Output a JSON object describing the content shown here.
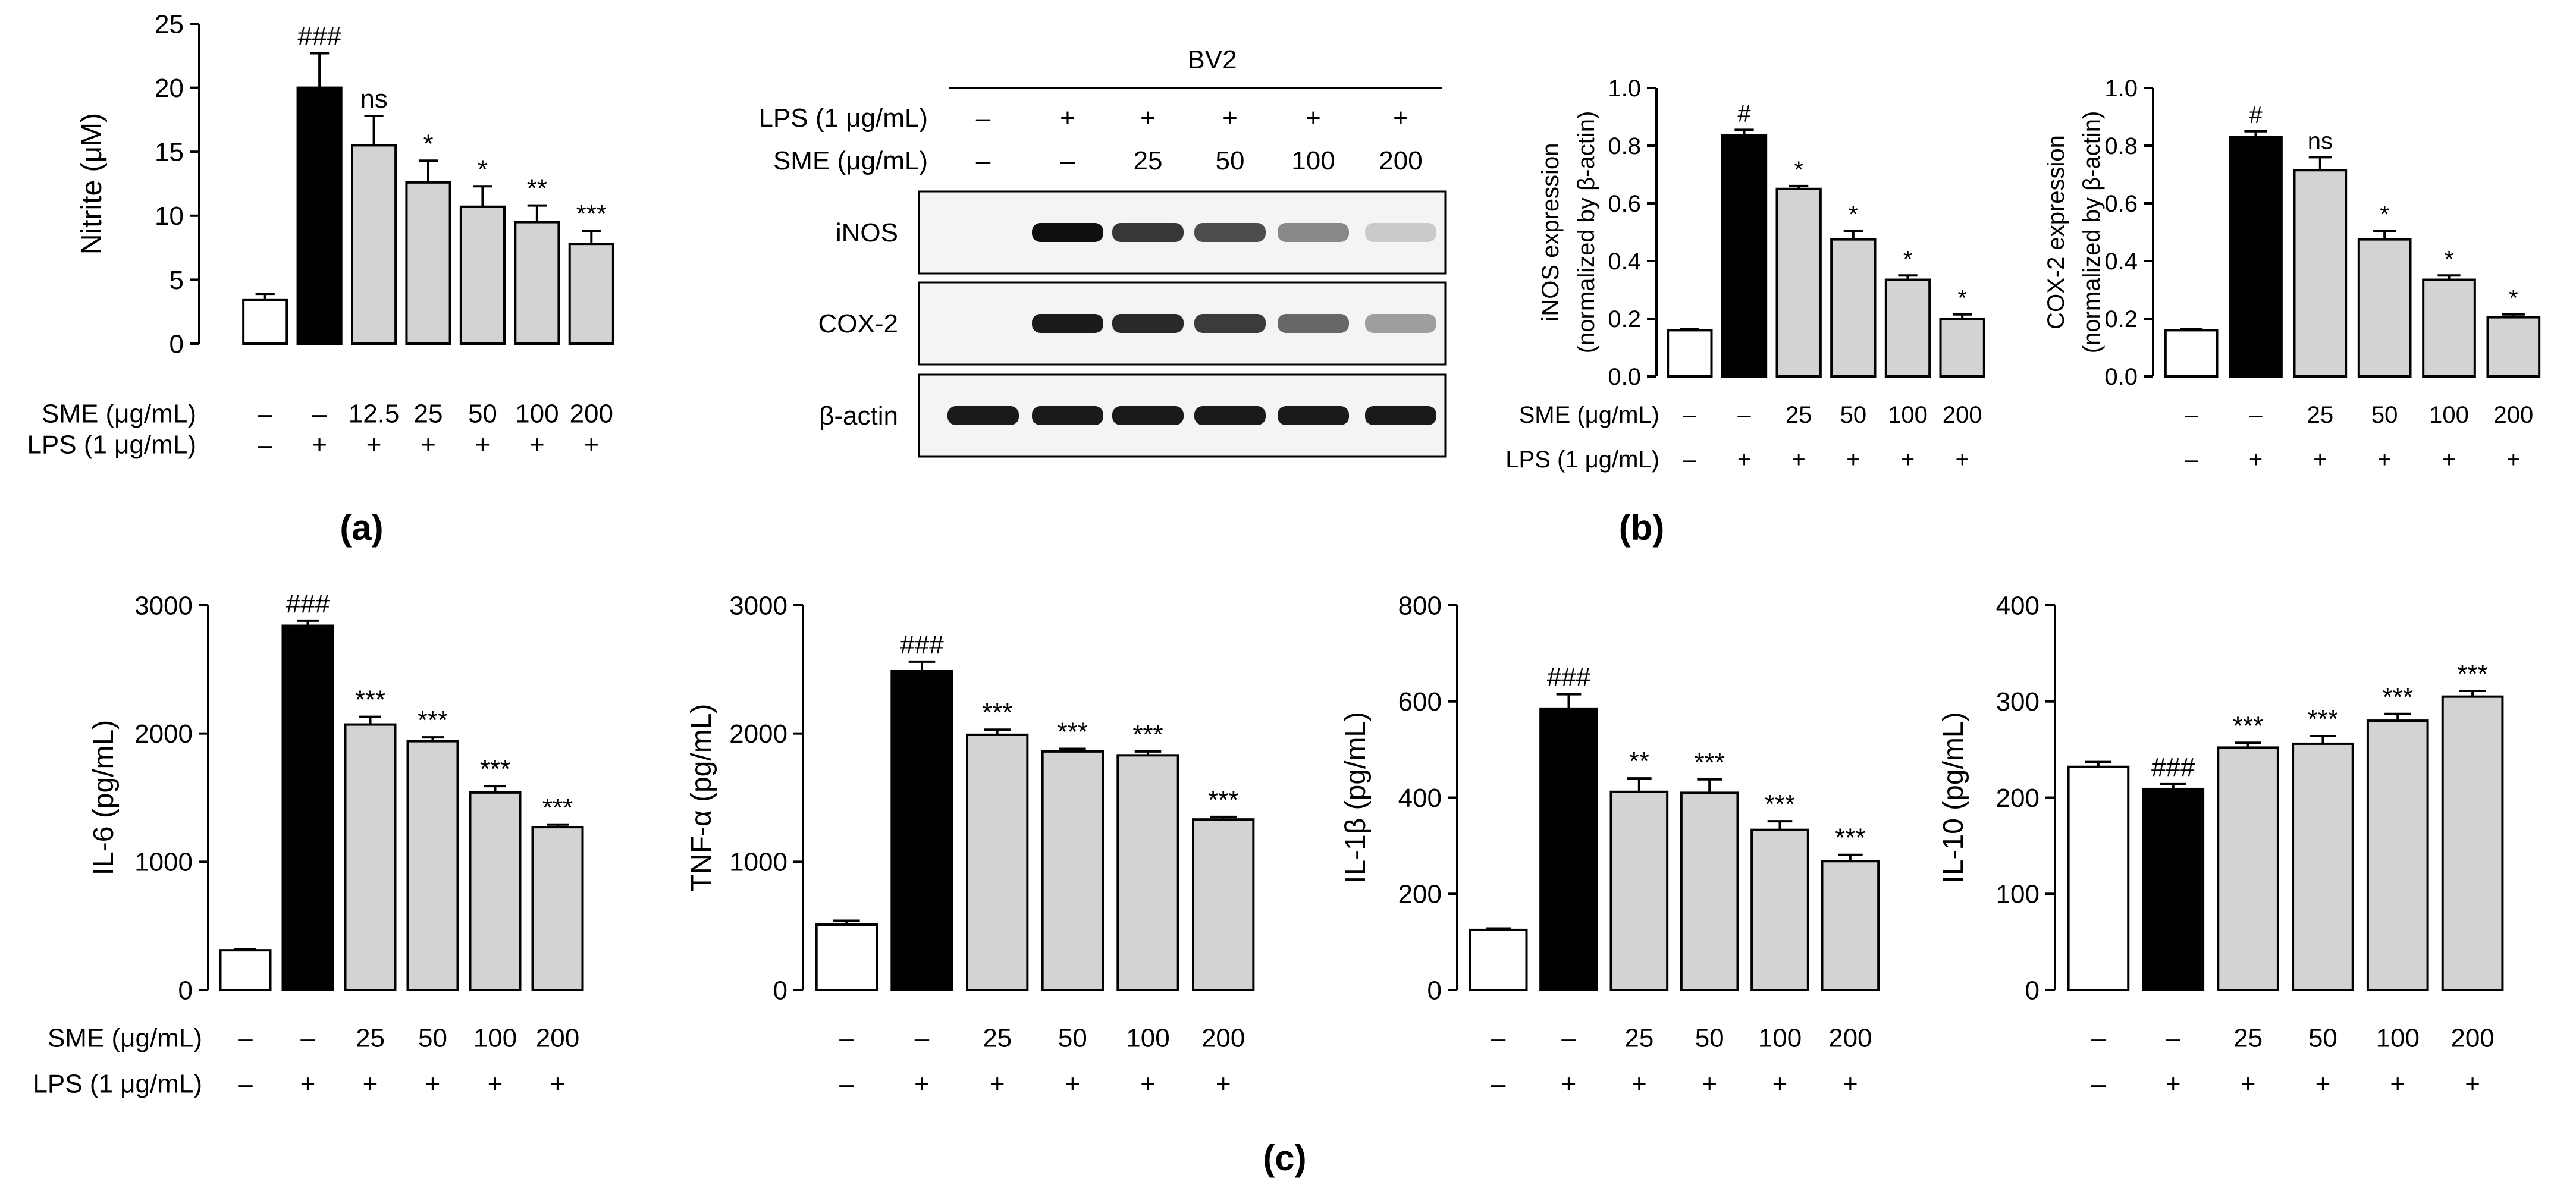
{
  "figure": {
    "panel_labels": {
      "a": "(a)",
      "b": "(b)",
      "c": "(c)"
    }
  },
  "styles": {
    "control_fill": "#ffffff",
    "lps_fill": "#000000",
    "sme_fill": "#d3d3d3"
  },
  "blot": {
    "header": "BV2",
    "row_labels": [
      "LPS (1 μg/mL)",
      "SME (μg/mL)"
    ],
    "lps_row": [
      "–",
      "+",
      "+",
      "+",
      "+",
      "+"
    ],
    "sme_row": [
      "–",
      "–",
      "25",
      "50",
      "100",
      "200"
    ],
    "bands": [
      {
        "name": "iNOS",
        "intensities": [
          0.0,
          1.0,
          0.82,
          0.72,
          0.45,
          0.15
        ]
      },
      {
        "name": "COX-2",
        "intensities": [
          0.0,
          0.95,
          0.88,
          0.8,
          0.6,
          0.35
        ]
      },
      {
        "name": "β-actin",
        "intensities": [
          0.95,
          0.95,
          0.95,
          0.95,
          0.95,
          0.95
        ]
      }
    ]
  },
  "chart_data": [
    {
      "id": "nitrite",
      "type": "bar",
      "panel": "a",
      "ylabel": "Nitrite (μM)",
      "ylim": [
        0,
        25
      ],
      "yticks": [
        "0",
        "5",
        "10",
        "15",
        "20",
        "25"
      ],
      "row_labels": [
        "SME (μg/mL)",
        "LPS (1 μg/mL)"
      ],
      "categories": [
        "–",
        "–",
        "12.5",
        "25",
        "50",
        "100",
        "200"
      ],
      "lps": [
        "–",
        "+",
        "+",
        "+",
        "+",
        "+",
        "+"
      ],
      "values": [
        3.4,
        20.0,
        15.5,
        12.6,
        10.7,
        9.5,
        7.8
      ],
      "errors": [
        0.5,
        2.7,
        2.3,
        1.7,
        1.6,
        1.3,
        1.0
      ],
      "annotations": [
        "",
        "###",
        "ns",
        "*",
        "*",
        "**",
        "***"
      ]
    },
    {
      "id": "inos",
      "type": "bar",
      "panel": "b",
      "ylabel": "iNOS expression",
      "ylabel2": "(normalized by β-actin)",
      "ylim": [
        0,
        1.0
      ],
      "yticks": [
        "0.0",
        "0.2",
        "0.4",
        "0.6",
        "0.8",
        "1.0"
      ],
      "row_labels": [
        "SME (μg/mL)",
        "LPS (1 μg/mL)"
      ],
      "categories": [
        "–",
        "–",
        "25",
        "50",
        "100",
        "200"
      ],
      "lps": [
        "–",
        "+",
        "+",
        "+",
        "+",
        "+"
      ],
      "values": [
        0.16,
        0.835,
        0.65,
        0.475,
        0.335,
        0.2
      ],
      "errors": [
        0.005,
        0.02,
        0.01,
        0.03,
        0.015,
        0.015
      ],
      "annotations": [
        "",
        "#",
        "*",
        "*",
        "*",
        "*"
      ]
    },
    {
      "id": "cox2",
      "type": "bar",
      "panel": "b",
      "ylabel": "COX-2 expression",
      "ylabel2": "(normalized by β-actin)",
      "ylim": [
        0,
        1.0
      ],
      "yticks": [
        "0.0",
        "0.2",
        "0.4",
        "0.6",
        "0.8",
        "1.0"
      ],
      "row_labels": [
        "",
        ""
      ],
      "categories": [
        "–",
        "–",
        "25",
        "50",
        "100",
        "200"
      ],
      "lps": [
        "–",
        "+",
        "+",
        "+",
        "+",
        "+"
      ],
      "values": [
        0.16,
        0.83,
        0.715,
        0.475,
        0.335,
        0.205
      ],
      "errors": [
        0.005,
        0.02,
        0.045,
        0.03,
        0.015,
        0.01
      ],
      "annotations": [
        "",
        "#",
        "ns",
        "*",
        "*",
        "*"
      ]
    },
    {
      "id": "il6",
      "type": "bar",
      "panel": "c",
      "ylabel": "IL-6 (pg/mL)",
      "ylim": [
        0,
        3000
      ],
      "yticks": [
        "0",
        "1000",
        "2000",
        "3000"
      ],
      "row_labels": [
        "SME (μg/mL)",
        "LPS (1 μg/mL)"
      ],
      "categories": [
        "–",
        "–",
        "25",
        "50",
        "100",
        "200"
      ],
      "lps": [
        "–",
        "+",
        "+",
        "+",
        "+",
        "+"
      ],
      "values": [
        310,
        2840,
        2070,
        1940,
        1540,
        1270
      ],
      "errors": [
        10,
        40,
        60,
        30,
        50,
        20
      ],
      "annotations": [
        "",
        "###",
        "***",
        "***",
        "***",
        "***"
      ]
    },
    {
      "id": "tnfa",
      "type": "bar",
      "panel": "c",
      "ylabel": "TNF-α (pg/mL)",
      "ylim": [
        0,
        3000
      ],
      "yticks": [
        "0",
        "1000",
        "2000",
        "3000"
      ],
      "row_labels": [
        "",
        ""
      ],
      "categories": [
        "–",
        "–",
        "25",
        "50",
        "100",
        "200"
      ],
      "lps": [
        "–",
        "+",
        "+",
        "+",
        "+",
        "+"
      ],
      "values": [
        510,
        2490,
        1990,
        1860,
        1830,
        1330
      ],
      "errors": [
        30,
        70,
        40,
        20,
        30,
        20
      ],
      "annotations": [
        "",
        "###",
        "***",
        "***",
        "***",
        "***"
      ]
    },
    {
      "id": "il1b",
      "type": "bar",
      "panel": "c",
      "ylabel": "IL-1β (pg/mL)",
      "ylim": [
        0,
        800
      ],
      "yticks": [
        "0",
        "200",
        "400",
        "600",
        "800"
      ],
      "row_labels": [
        "",
        ""
      ],
      "categories": [
        "–",
        "–",
        "25",
        "50",
        "100",
        "200"
      ],
      "lps": [
        "–",
        "+",
        "+",
        "+",
        "+",
        "+"
      ],
      "values": [
        125,
        585,
        412,
        410,
        333,
        268
      ],
      "errors": [
        3,
        30,
        28,
        28,
        18,
        13
      ],
      "annotations": [
        "",
        "###",
        "**",
        "***",
        "***",
        "***"
      ]
    },
    {
      "id": "il10",
      "type": "bar",
      "panel": "c",
      "ylabel": "IL-10 (pg/mL)",
      "ylim": [
        0,
        400
      ],
      "yticks": [
        "0",
        "100",
        "200",
        "300",
        "400"
      ],
      "row_labels": [
        "",
        ""
      ],
      "categories": [
        "–",
        "–",
        "25",
        "50",
        "100",
        "200"
      ],
      "lps": [
        "–",
        "+",
        "+",
        "+",
        "+",
        "+"
      ],
      "values": [
        232,
        209,
        252,
        256,
        280,
        305
      ],
      "errors": [
        5,
        5,
        5,
        8,
        7,
        6
      ],
      "annotations": [
        "",
        "###",
        "***",
        "***",
        "***",
        "***"
      ]
    }
  ]
}
